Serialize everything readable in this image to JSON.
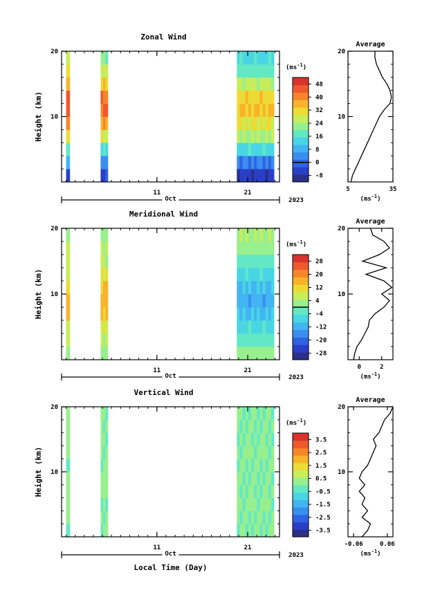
{
  "chart_data": [
    {
      "type": "heatmap",
      "title": "Zonal Wind",
      "ylabel": "Height (km)",
      "xlabel": "",
      "ylim": [
        0,
        20
      ],
      "y_ticks": [
        "20",
        "10"
      ],
      "x_ticks": [
        "11",
        "21"
      ],
      "month": "Oct",
      "year": "2023",
      "colorbar": {
        "unit": "(ms",
        "unit_exp": "-1",
        "labels": [
          "48",
          "40",
          "32",
          "24",
          "16",
          "8",
          "0",
          "-8"
        ],
        "contour_level": "0"
      },
      "data_segments": [
        {
          "x_start": 1.0,
          "x_end": 1.4,
          "profile": [
            -2,
            6,
            18,
            30,
            40,
            46,
            44,
            38,
            30,
            26
          ]
        },
        {
          "x_start": 4.8,
          "x_end": 5.6,
          "profile": [
            -4,
            4,
            16,
            28,
            38,
            44,
            42,
            34,
            26,
            20
          ]
        },
        {
          "x_start": 19.8,
          "x_end": 23.9,
          "profile": [
            -6,
            2,
            14,
            24,
            30,
            34,
            32,
            26,
            18,
            14
          ]
        }
      ],
      "average_profile": {
        "title": "Average",
        "xlabel": "(ms",
        "xlabel_exp": "-1",
        "xlim": [
          5,
          35
        ],
        "x_ticks": [
          "5",
          "35"
        ],
        "y_ticks": [
          "20",
          "10"
        ],
        "height": [
          0,
          1,
          2,
          3,
          4,
          5,
          6,
          7,
          8,
          9,
          10,
          11,
          12,
          13,
          14,
          15,
          16,
          17,
          18,
          19,
          20
        ],
        "values": [
          7,
          8,
          10,
          12,
          14,
          16,
          18,
          20,
          22,
          24,
          26,
          29,
          33,
          34,
          33,
          31,
          28,
          26,
          24,
          23,
          23
        ]
      }
    },
    {
      "type": "heatmap",
      "title": "Meridional Wind",
      "ylabel": "Height (km)",
      "xlabel": "",
      "ylim": [
        0,
        20
      ],
      "y_ticks": [
        "20",
        "10"
      ],
      "x_ticks": [
        "11",
        "21"
      ],
      "month": "Oct",
      "year": "2023",
      "colorbar": {
        "unit": "(ms",
        "unit_exp": "-1",
        "labels": [
          "28",
          "20",
          "12",
          "4",
          "-4",
          "-12",
          "-20",
          "-28"
        ],
        "contour_level": "0"
      },
      "data_segments": [
        {
          "x_start": 1.0,
          "x_end": 1.4,
          "profile": [
            2,
            4,
            8,
            12,
            14,
            12,
            8,
            6,
            4,
            2
          ]
        },
        {
          "x_start": 4.8,
          "x_end": 5.6,
          "profile": [
            2,
            6,
            10,
            14,
            16,
            14,
            10,
            6,
            4,
            2
          ]
        },
        {
          "x_start": 19.8,
          "x_end": 23.9,
          "profile": [
            2,
            -2,
            -6,
            -10,
            -12,
            -10,
            -6,
            -2,
            2,
            4
          ]
        }
      ],
      "average_profile": {
        "title": "Average",
        "xlabel": "(ms",
        "xlabel_exp": "-1",
        "xlim": [
          -1,
          3
        ],
        "x_ticks": [
          "0",
          "2"
        ],
        "y_ticks": [
          "20",
          "10"
        ],
        "height": [
          0,
          1,
          2,
          3,
          4,
          5,
          6,
          7,
          8,
          9,
          10,
          11,
          12,
          13,
          14,
          15,
          16,
          17,
          18,
          19,
          20
        ],
        "values": [
          -0.5,
          -0.4,
          -0.2,
          0.2,
          0.5,
          0.8,
          0.9,
          1.4,
          2.2,
          2.7,
          2.0,
          2.9,
          2.2,
          0.6,
          2.4,
          0.3,
          1.8,
          2.7,
          2.2,
          1.2,
          1.0
        ]
      }
    },
    {
      "type": "heatmap",
      "title": "Vertical Wind",
      "ylabel": "Height (km)",
      "xlabel": "Local Time (Day)",
      "ylim": [
        0,
        20
      ],
      "y_ticks": [
        "20",
        "10"
      ],
      "x_ticks": [
        "11",
        "21"
      ],
      "month": "Oct",
      "year": "2023",
      "colorbar": {
        "unit": "(ms",
        "unit_exp": "-1",
        "labels": [
          "3.5",
          "2.5",
          "1.5",
          "0.5",
          "-0.5",
          "-1.5",
          "-2.5",
          "-3.5"
        ],
        "contour_level": ""
      },
      "data_segments": [
        {
          "x_start": 1.0,
          "x_end": 1.4,
          "profile": [
            0.2,
            0.1,
            0.3,
            0.2,
            0.1,
            0.2,
            0.3,
            0.2,
            0.1,
            0.2
          ]
        },
        {
          "x_start": 4.8,
          "x_end": 5.6,
          "profile": [
            0.1,
            0.2,
            0.1,
            0.2,
            0.3,
            0.2,
            0.1,
            0.2,
            0.1,
            0.1
          ]
        },
        {
          "x_start": 19.8,
          "x_end": 23.9,
          "profile": [
            0.0,
            0.1,
            0.2,
            0.1,
            0.0,
            0.1,
            0.2,
            0.1,
            0.0,
            0.1
          ]
        }
      ],
      "average_profile": {
        "title": "Average",
        "xlabel": "(ms",
        "xlabel_exp": "-1",
        "xlim": [
          -0.08,
          0.08
        ],
        "x_ticks": [
          "-0.06",
          "0.06"
        ],
        "y_ticks": [
          "20",
          "10"
        ],
        "height": [
          0,
          1,
          2,
          3,
          4,
          5,
          6,
          7,
          8,
          9,
          10,
          11,
          12,
          13,
          14,
          15,
          16,
          17,
          18,
          19,
          20
        ],
        "values": [
          -0.03,
          -0.01,
          0.0,
          -0.03,
          -0.01,
          -0.03,
          -0.02,
          -0.04,
          -0.02,
          -0.04,
          -0.03,
          -0.01,
          0.0,
          0.01,
          0.02,
          0.01,
          0.03,
          0.04,
          0.05,
          0.07,
          0.08
        ]
      }
    }
  ]
}
